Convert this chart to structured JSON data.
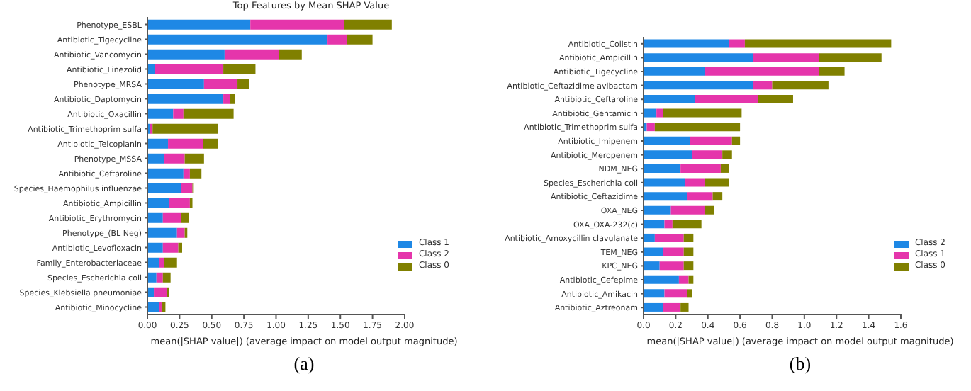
{
  "chart_data": [
    {
      "type": "bar",
      "orientation": "horizontal",
      "stacked": true,
      "title": "Top Features by Mean SHAP Value",
      "xlabel": "mean(|SHAP value|) (average impact on model output magnitude)",
      "annotations": [
        "(a)"
      ],
      "legend": "bottom right",
      "categories": [
        "Phenotype_ESBL",
        "Antibiotic_Tigecycline",
        "Antibiotic_Vancomycin",
        "Antibiotic_Linezolid",
        "Phenotype_MRSA",
        "Antibiotic_Daptomycin",
        "Antibiotic_Oxacillin",
        "Antibiotic_Trimethoprim sulfa",
        "Antibiotic_Teicoplanin",
        "Phenotype_MSSA",
        "Antibiotic_Ceftaroline",
        "Species_Haemophilus influenzae",
        "Antibiotic_Ampicillin",
        "Antibiotic_Erythromycin",
        "Phenotype_(BL Neg)",
        "Antibiotic_Levofloxacin",
        "Family_Enterobacteriaceae",
        "Species_Escherichia coli",
        "Species_Klebsiella pneumoniae",
        "Antibiotic_Minocycline"
      ],
      "series": [
        {
          "name": "Class 1",
          "color": "#1e88e5",
          "values": [
            0.8,
            1.4,
            0.6,
            0.06,
            0.44,
            0.59,
            0.2,
            0.02,
            0.16,
            0.13,
            0.28,
            0.26,
            0.17,
            0.12,
            0.23,
            0.12,
            0.09,
            0.07,
            0.05,
            0.09
          ]
        },
        {
          "name": "Class 2",
          "color": "#e535ab",
          "values": [
            0.73,
            0.15,
            0.42,
            0.53,
            0.26,
            0.05,
            0.08,
            0.02,
            0.27,
            0.16,
            0.05,
            0.09,
            0.16,
            0.14,
            0.06,
            0.12,
            0.04,
            0.05,
            0.1,
            0.02
          ]
        },
        {
          "name": "Class 0",
          "color": "#808000",
          "values": [
            0.37,
            0.2,
            0.18,
            0.25,
            0.09,
            0.04,
            0.39,
            0.51,
            0.12,
            0.15,
            0.09,
            0.01,
            0.02,
            0.06,
            0.02,
            0.03,
            0.1,
            0.06,
            0.02,
            0.03
          ]
        }
      ],
      "xlim": [
        0,
        2.0
      ],
      "xticks": [
        {
          "value": 0,
          "label": "0.00"
        },
        {
          "value": 0.25,
          "label": "0.25"
        },
        {
          "value": 0.5,
          "label": "0.50"
        },
        {
          "value": 0.75,
          "label": "0.75"
        },
        {
          "value": 1,
          "label": "1.00"
        },
        {
          "value": 1.25,
          "label": "1.25"
        },
        {
          "value": 1.5,
          "label": "1.50"
        },
        {
          "value": 1.75,
          "label": "1.75"
        },
        {
          "value": 2,
          "label": "2.00"
        }
      ]
    },
    {
      "type": "bar",
      "orientation": "horizontal",
      "stacked": true,
      "xlabel": "mean(|SHAP value|) (average impact on model output magnitude)",
      "annotations": [
        "(b)"
      ],
      "legend": "bottom right",
      "categories": [
        "Antibiotic_Colistin",
        "Antibiotic_Ampicillin",
        "Antibiotic_Tigecycline",
        "Antibiotic_Ceftazidime avibactam",
        "Antibiotic_Ceftaroline",
        "Antibiotic_Gentamicin",
        "Antibiotic_Trimethoprim sulfa",
        "Antibiotic_Imipenem",
        "Antibiotic_Meropenem",
        "NDM_NEG",
        "Species_Escherichia coli",
        "Antibiotic_Ceftazidime",
        "OXA_NEG",
        "OXA_OXA-232(c)",
        "Antibiotic_Amoxycillin clavulanate",
        "TEM_NEG",
        "KPC_NEG",
        "Antibiotic_Cefepime",
        "Antibiotic_Amikacin",
        "Antibiotic_Aztreonam"
      ],
      "series": [
        {
          "name": "Class 2",
          "color": "#1e88e5",
          "values": [
            0.53,
            0.68,
            0.38,
            0.68,
            0.32,
            0.08,
            0.02,
            0.29,
            0.3,
            0.23,
            0.26,
            0.27,
            0.17,
            0.13,
            0.07,
            0.12,
            0.1,
            0.22,
            0.13,
            0.12
          ]
        },
        {
          "name": "Class 1",
          "color": "#e535ab",
          "values": [
            0.1,
            0.41,
            0.71,
            0.12,
            0.39,
            0.04,
            0.05,
            0.26,
            0.19,
            0.25,
            0.12,
            0.16,
            0.21,
            0.05,
            0.18,
            0.13,
            0.15,
            0.06,
            0.14,
            0.11
          ]
        },
        {
          "name": "Class 0",
          "color": "#808000",
          "values": [
            0.91,
            0.39,
            0.16,
            0.35,
            0.22,
            0.49,
            0.53,
            0.05,
            0.06,
            0.05,
            0.15,
            0.06,
            0.06,
            0.18,
            0.06,
            0.06,
            0.06,
            0.03,
            0.03,
            0.05
          ]
        }
      ],
      "xlim": [
        0,
        1.6
      ],
      "xticks": [
        {
          "value": 0,
          "label": "0.0"
        },
        {
          "value": 0.2,
          "label": "0.2"
        },
        {
          "value": 0.4,
          "label": "0.4"
        },
        {
          "value": 0.6,
          "label": "0.6"
        },
        {
          "value": 0.8,
          "label": "0.8"
        },
        {
          "value": 1,
          "label": "1.0"
        },
        {
          "value": 1.2,
          "label": "1.2"
        },
        {
          "value": 1.4,
          "label": "1.4"
        },
        {
          "value": 1.6,
          "label": "1.6"
        }
      ]
    }
  ]
}
